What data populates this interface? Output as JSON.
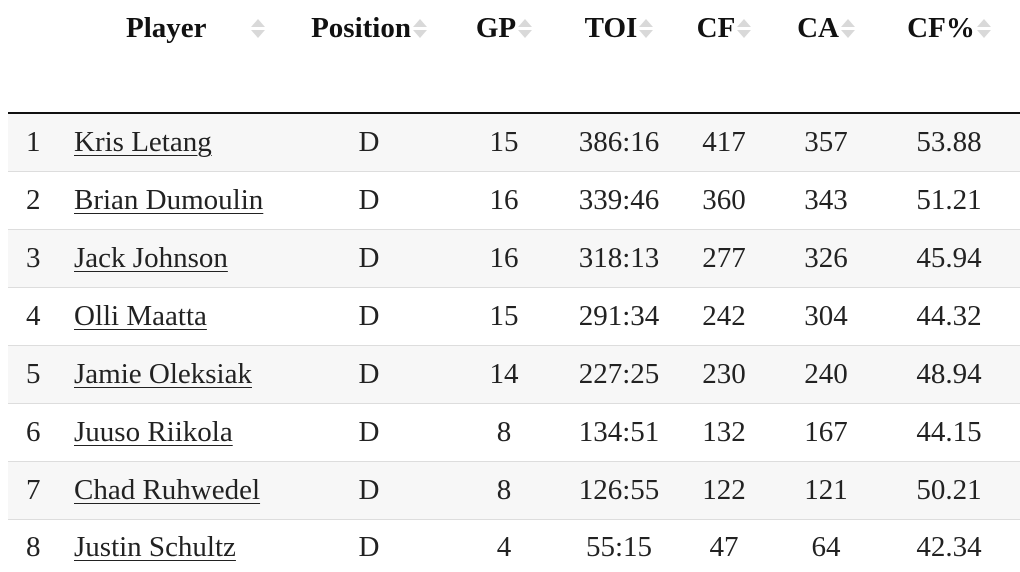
{
  "table": {
    "columns": [
      {
        "key": "player",
        "label": "Player"
      },
      {
        "key": "position",
        "label": "Position"
      },
      {
        "key": "gp",
        "label": "GP"
      },
      {
        "key": "toi",
        "label": "TOI"
      },
      {
        "key": "cf",
        "label": "CF"
      },
      {
        "key": "ca",
        "label": "CA"
      },
      {
        "key": "cfpct",
        "label": "CF%"
      }
    ],
    "rows": [
      {
        "rank": "1",
        "player": "Kris Letang",
        "position": "D",
        "gp": "15",
        "toi": "386:16",
        "cf": "417",
        "ca": "357",
        "cfpct": "53.88"
      },
      {
        "rank": "2",
        "player": "Brian Dumoulin",
        "position": "D",
        "gp": "16",
        "toi": "339:46",
        "cf": "360",
        "ca": "343",
        "cfpct": "51.21"
      },
      {
        "rank": "3",
        "player": "Jack Johnson",
        "position": "D",
        "gp": "16",
        "toi": "318:13",
        "cf": "277",
        "ca": "326",
        "cfpct": "45.94"
      },
      {
        "rank": "4",
        "player": "Olli Maatta",
        "position": "D",
        "gp": "15",
        "toi": "291:34",
        "cf": "242",
        "ca": "304",
        "cfpct": "44.32"
      },
      {
        "rank": "5",
        "player": "Jamie Oleksiak",
        "position": "D",
        "gp": "14",
        "toi": "227:25",
        "cf": "230",
        "ca": "240",
        "cfpct": "48.94"
      },
      {
        "rank": "6",
        "player": "Juuso Riikola",
        "position": "D",
        "gp": "8",
        "toi": "134:51",
        "cf": "132",
        "ca": "167",
        "cfpct": "44.15"
      },
      {
        "rank": "7",
        "player": "Chad Ruhwedel",
        "position": "D",
        "gp": "8",
        "toi": "126:55",
        "cf": "122",
        "ca": "121",
        "cfpct": "50.21"
      },
      {
        "rank": "8",
        "player": "Justin Schultz",
        "position": "D",
        "gp": "4",
        "toi": "55:15",
        "cf": "47",
        "ca": "64",
        "cfpct": "42.34"
      }
    ]
  },
  "icons": {
    "sort": "sort-both-icon"
  },
  "colors": {
    "header_rule": "#111111",
    "row_stripe": "#f7f7f7",
    "row_divider": "#dddddd",
    "sort_arrow": "#d9d9d9"
  }
}
